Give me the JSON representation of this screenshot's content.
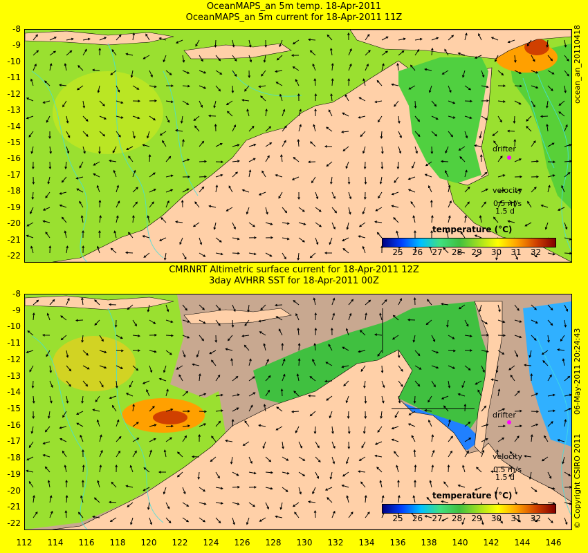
{
  "top_panel": {
    "title_line1": "OceanMAPS_an 5m temp. 18-Apr-2011",
    "title_line2": "OceanMAPS_an 5m current for 18-Apr-2011 11Z",
    "side_label": "ocean_an_20110418",
    "legend": {
      "title": "temperature (°C)",
      "ticks": [
        "25",
        "26",
        "27",
        "28",
        "29",
        "30",
        "31",
        "32"
      ]
    },
    "drifter_label": "drifter",
    "velocity_label": "velocity",
    "velocity_scale": "0.5 m/s",
    "velocity_days": "1.5 d"
  },
  "bottom_panel": {
    "title_line1": "CMRNRT Altimetric surface current for 18-Apr-2011 12Z",
    "title_line2": "3day AVHRR SST for 18-Apr-2011 00Z",
    "side_label": "06-May-2011 20:24:43",
    "copyright": "© Copyright CSIRO 2011",
    "legend": {
      "title": "temperature (°C)",
      "ticks": [
        "25",
        "26",
        "27",
        "28",
        "29",
        "30",
        "31",
        "32"
      ]
    },
    "drifter_label": "drifter",
    "velocity_label": "velocity",
    "velocity_scale": "0.5 m/s",
    "velocity_days": "1.5 d"
  },
  "y_axis": {
    "ticks": [
      "-8",
      "-9",
      "-10",
      "-11",
      "-12",
      "-13",
      "-14",
      "-15",
      "-16",
      "-17",
      "-18",
      "-19",
      "-20",
      "-21",
      "-22"
    ]
  },
  "x_axis": {
    "ticks": [
      "112",
      "114",
      "116",
      "118",
      "120",
      "122",
      "124",
      "126",
      "128",
      "130",
      "132",
      "134",
      "136",
      "138",
      "140",
      "142",
      "144",
      "146"
    ]
  },
  "colors": {
    "background": "#ffff00",
    "land": "#ffd0a8",
    "ocean_warm": "#9ae030",
    "ocean_cool": "#40c040",
    "contour": "#40e0e0",
    "no_data": "#c8a890",
    "drifter": "#ff00ff"
  },
  "colorbar_stops": [
    "#000080",
    "#0040ff",
    "#00c0ff",
    "#40e080",
    "#40c040",
    "#a0e020",
    "#ffff00",
    "#ffa000",
    "#d04000",
    "#800000"
  ]
}
